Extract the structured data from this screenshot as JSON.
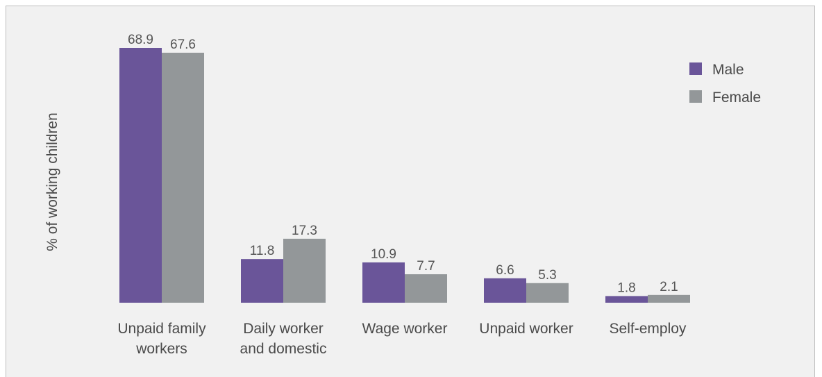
{
  "chart_data": {
    "type": "bar",
    "title": "",
    "xlabel": "",
    "ylabel": "% of working children",
    "ylim": [
      0,
      70
    ],
    "grid": false,
    "legend_position": "top-right",
    "categories": [
      [
        "Unpaid family",
        "workers"
      ],
      [
        "Daily worker",
        "and domestic"
      ],
      [
        "Wage worker"
      ],
      [
        "Unpaid worker"
      ],
      [
        "Self-employ"
      ]
    ],
    "series": [
      {
        "name": "Male",
        "color": "#6a5599",
        "values": [
          68.9,
          11.8,
          10.9,
          6.6,
          1.8
        ]
      },
      {
        "name": "Female",
        "color": "#939799",
        "values": [
          67.6,
          17.3,
          7.7,
          5.3,
          2.1
        ]
      }
    ]
  }
}
